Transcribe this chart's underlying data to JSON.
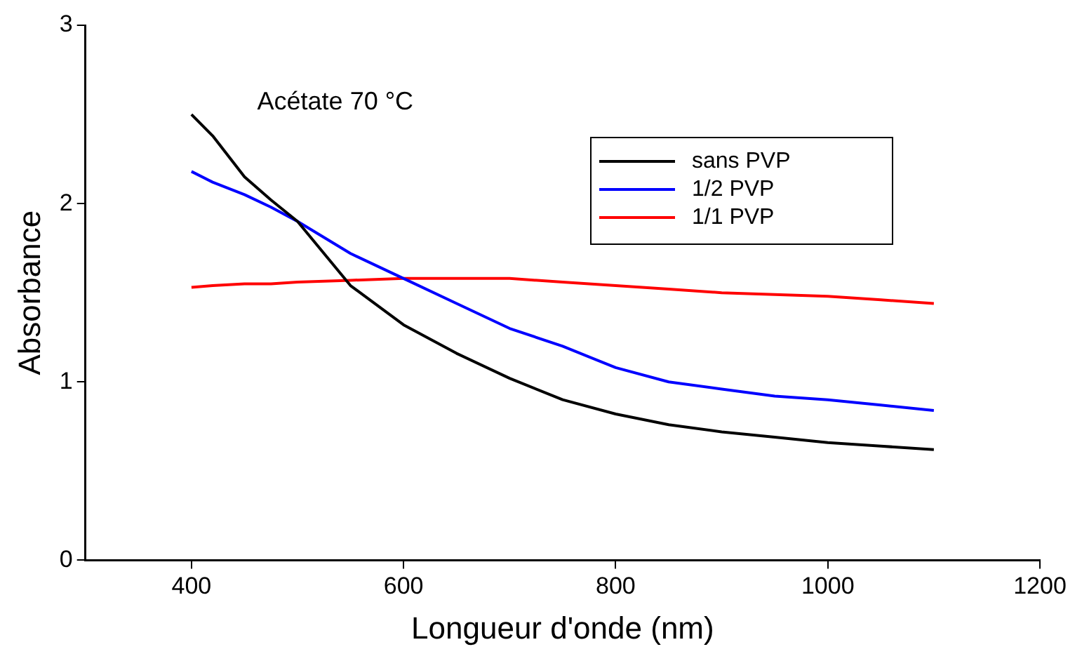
{
  "chart_data": {
    "type": "line",
    "xlabel": "Longueur d'onde (nm)",
    "ylabel": "Absorbance",
    "annotations": [
      "Acétate 70 °C"
    ],
    "x": [
      400,
      420,
      450,
      475,
      500,
      550,
      600,
      650,
      700,
      750,
      800,
      850,
      900,
      950,
      1000,
      1050,
      1100
    ],
    "series": [
      {
        "name": "sans PVP",
        "color": "#000000",
        "values": [
          2.5,
          2.38,
          2.15,
          2.02,
          1.9,
          1.54,
          1.32,
          1.16,
          1.02,
          0.9,
          0.82,
          0.76,
          0.72,
          0.69,
          0.66,
          0.64,
          0.62
        ]
      },
      {
        "name": "1/2 PVP",
        "color": "#0000ff",
        "values": [
          2.18,
          2.12,
          2.05,
          1.98,
          1.9,
          1.72,
          1.58,
          1.44,
          1.3,
          1.2,
          1.08,
          1.0,
          0.96,
          0.92,
          0.9,
          0.87,
          0.84
        ]
      },
      {
        "name": "1/1 PVP",
        "color": "#ff0000",
        "values": [
          1.53,
          1.54,
          1.55,
          1.55,
          1.56,
          1.57,
          1.58,
          1.58,
          1.58,
          1.56,
          1.54,
          1.52,
          1.5,
          1.49,
          1.48,
          1.46,
          1.44
        ]
      }
    ],
    "xlim": [
      300,
      1200
    ],
    "xticks": [
      400,
      600,
      800,
      1000,
      1200
    ],
    "ylim": [
      0,
      3
    ],
    "yticks": [
      0,
      1,
      2,
      3
    ],
    "grid": false,
    "legend": "top right",
    "marker": "none",
    "line_style": "solid"
  }
}
